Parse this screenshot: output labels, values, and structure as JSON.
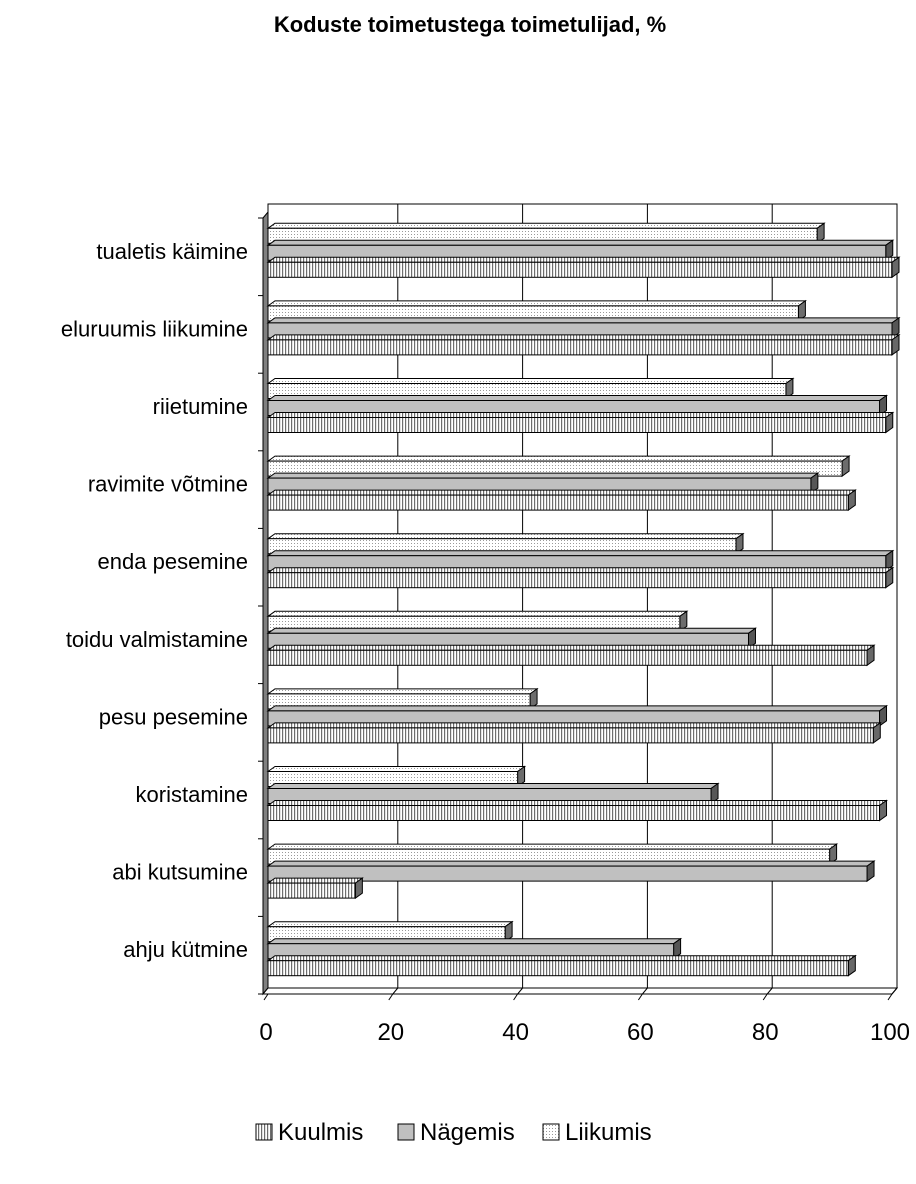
{
  "chart_data": {
    "type": "bar",
    "orientation": "horizontal",
    "title": "Koduste toimetustega toimetulijad, %",
    "xlabel": "",
    "ylabel": "",
    "xlim": [
      0,
      100
    ],
    "xticks": [
      0,
      20,
      40,
      60,
      80,
      100
    ],
    "grid": true,
    "legend_position": "bottom",
    "categories": [
      "tualetis käimine",
      "eluruumis liikumine",
      "riietumine",
      "ravimite võtmine",
      "enda pesemine",
      "toidu valmistamine",
      "pesu pesemine",
      "koristamine",
      "abi kutsumine",
      "ahju kütmine"
    ],
    "series": [
      {
        "name": "Kuulmis",
        "color": "#e6e6e6",
        "pattern": "vertical-lines",
        "values": [
          100,
          100,
          99,
          93,
          99,
          96,
          97,
          98,
          14,
          93
        ]
      },
      {
        "name": "Nägemis",
        "color": "#c0c0c0",
        "pattern": "solid",
        "values": [
          99,
          100,
          98,
          87,
          99,
          77,
          98,
          71,
          96,
          65
        ]
      },
      {
        "name": "Liikumis",
        "color": "#f0f0f0",
        "pattern": "dots",
        "values": [
          88,
          85,
          83,
          92,
          75,
          66,
          42,
          40,
          90,
          38
        ]
      }
    ]
  }
}
